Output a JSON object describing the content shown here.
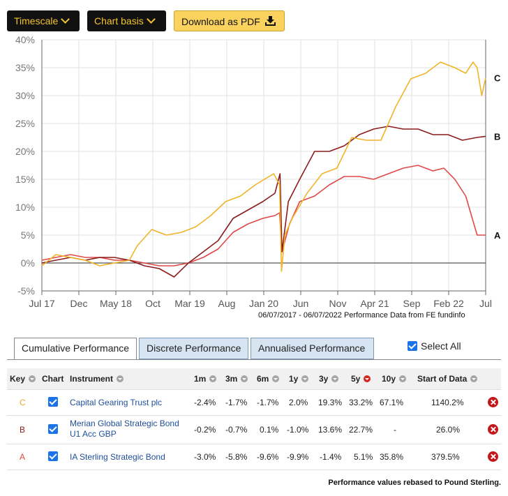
{
  "toolbar": {
    "timescale_label": "Timescale",
    "chart_basis_label": "Chart basis",
    "pdf_label": "Download as PDF"
  },
  "chart_data": {
    "type": "line",
    "ylim": [
      -5,
      40
    ],
    "yticks": [
      "40%",
      "35%",
      "30%",
      "25%",
      "20%",
      "15%",
      "10%",
      "5%",
      "0%",
      "-5%"
    ],
    "xticks": [
      "Jul 17",
      "Dec",
      "May 18",
      "Oct",
      "Mar 19",
      "Aug",
      "Jan 20",
      "Jun",
      "Nov",
      "Apr 21",
      "Sep",
      "Feb 22",
      "Jul"
    ],
    "x_start": "2017-07-06",
    "x_end": "2022-07-06",
    "period_label": "06/07/2017 - 06/07/2022 Performance Data from FE fundinfo",
    "colors": {
      "A": "#e04848",
      "B": "#8a1c1c",
      "C": "#f0b429"
    },
    "series": [
      {
        "name": "C",
        "x": [
          "2017-07-06",
          "2017-09-01",
          "2017-11-01",
          "2018-01-01",
          "2018-03-01",
          "2018-05-01",
          "2018-07-01",
          "2018-08-01",
          "2018-10-01",
          "2018-12-01",
          "2019-02-01",
          "2019-04-01",
          "2019-06-01",
          "2019-08-01",
          "2019-10-01",
          "2019-12-01",
          "2020-02-15",
          "2020-03-10",
          "2020-03-18",
          "2020-04-01",
          "2020-05-01",
          "2020-07-01",
          "2020-09-01",
          "2020-11-01",
          "2021-01-01",
          "2021-03-01",
          "2021-05-01",
          "2021-07-01",
          "2021-09-01",
          "2021-11-01",
          "2022-01-01",
          "2022-03-01",
          "2022-04-15",
          "2022-05-15",
          "2022-06-01",
          "2022-06-20",
          "2022-07-06"
        ],
        "values": [
          -0.5,
          1.5,
          1,
          0.5,
          -0.5,
          0,
          0.5,
          3,
          6,
          5,
          5.5,
          6.5,
          8.5,
          11,
          12,
          14,
          16,
          14,
          -1.5,
          5,
          8,
          12.5,
          16,
          17,
          22.5,
          22,
          22,
          28,
          33,
          34,
          36,
          35,
          34,
          36,
          35,
          30,
          33.2
        ]
      },
      {
        "name": "B",
        "x": [
          "2017-07-06",
          "2017-09-01",
          "2017-11-01",
          "2018-01-01",
          "2018-03-01",
          "2018-05-01",
          "2018-07-01",
          "2018-09-01",
          "2018-11-01",
          "2019-01-01",
          "2019-03-01",
          "2019-05-01",
          "2019-07-01",
          "2019-09-01",
          "2019-11-01",
          "2020-01-01",
          "2020-02-20",
          "2020-03-12",
          "2020-03-20",
          "2020-04-15",
          "2020-06-01",
          "2020-08-01",
          "2020-10-01",
          "2020-12-01",
          "2021-02-01",
          "2021-04-01",
          "2021-06-01",
          "2021-08-01",
          "2021-10-01",
          "2021-12-01",
          "2022-02-01",
          "2022-04-01",
          "2022-06-01",
          "2022-07-06"
        ],
        "values": [
          0,
          0.5,
          1,
          0.5,
          1,
          1,
          0.5,
          -0.5,
          -1,
          -2.5,
          0,
          2,
          4,
          8,
          9.5,
          11,
          12.5,
          16,
          2,
          11,
          15,
          20,
          20,
          21,
          23,
          24,
          24.5,
          24,
          24,
          23,
          23,
          22,
          22.5,
          22.7
        ]
      },
      {
        "name": "A",
        "x": [
          "2017-07-06",
          "2017-09-01",
          "2017-11-01",
          "2018-01-01",
          "2018-03-01",
          "2018-05-01",
          "2018-07-01",
          "2018-09-01",
          "2018-11-01",
          "2019-01-01",
          "2019-03-01",
          "2019-05-01",
          "2019-07-01",
          "2019-09-01",
          "2019-11-01",
          "2020-01-01",
          "2020-02-20",
          "2020-03-10",
          "2020-03-20",
          "2020-04-20",
          "2020-06-01",
          "2020-08-01",
          "2020-10-01",
          "2020-12-01",
          "2021-02-01",
          "2021-04-01",
          "2021-06-01",
          "2021-08-01",
          "2021-10-01",
          "2021-12-01",
          "2022-01-15",
          "2022-03-01",
          "2022-04-15",
          "2022-06-01",
          "2022-07-06"
        ],
        "values": [
          0.5,
          1,
          1.5,
          1,
          1,
          0.5,
          0.5,
          0,
          -0.5,
          -0.5,
          0,
          1,
          2.5,
          5.5,
          7,
          8,
          8.5,
          9,
          2,
          7,
          11,
          12,
          14,
          15.5,
          15.5,
          15,
          16,
          17,
          17.5,
          16.5,
          17,
          15,
          12,
          5,
          5
        ]
      }
    ]
  },
  "tabs": [
    "Cumulative Performance",
    "Discrete Performance",
    "Annualised Performance"
  ],
  "select_all_label": "Select All",
  "table": {
    "headers": [
      "Key",
      "Chart",
      "Instrument",
      "1m",
      "3m",
      "6m",
      "1y",
      "3y",
      "5y",
      "10y",
      "Start of Data"
    ],
    "rows": [
      {
        "key": "C",
        "instrument": "Capital Gearing Trust plc",
        "values": [
          "-2.4%",
          "-1.7%",
          "-1.7%",
          "2.0%",
          "19.3%",
          "33.2%",
          "67.1%",
          "1140.2%"
        ]
      },
      {
        "key": "B",
        "instrument": "Merian Global Strategic Bond U1 Acc GBP",
        "values": [
          "-0.2%",
          "-0.7%",
          "0.1%",
          "-1.0%",
          "13.6%",
          "22.7%",
          "-",
          "26.0%"
        ]
      },
      {
        "key": "A",
        "instrument": "IA Sterling Strategic Bond",
        "values": [
          "-3.0%",
          "-5.8%",
          "-9.6%",
          "-9.9%",
          "-1.4%",
          "5.1%",
          "35.8%",
          "379.5%"
        ]
      }
    ]
  },
  "footer": "Performance values rebased to Pound Sterling."
}
